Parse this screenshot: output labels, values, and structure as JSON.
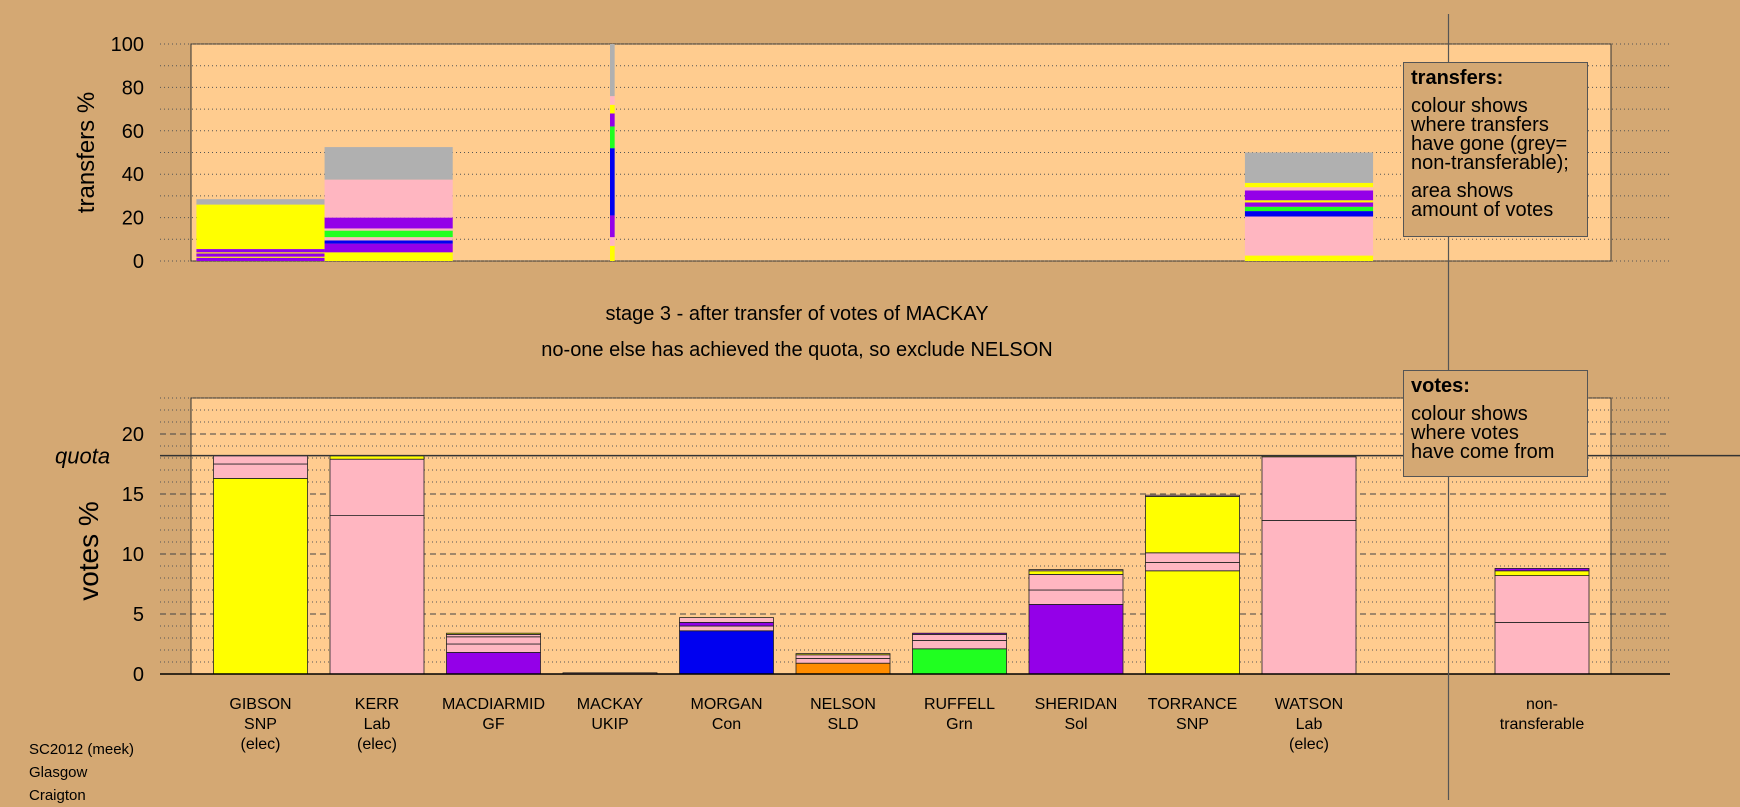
{
  "chart_data": [
    {
      "type": "bar",
      "panel": "transfers",
      "ylabel": "transfers %",
      "ylim": [
        0,
        100
      ],
      "yticks": [
        0,
        20,
        40,
        60,
        80,
        100
      ],
      "bars": [
        {
          "x0": 0.45,
          "x1": 1.55,
          "segments": [
            {
              "color": "#9400E8",
              "value": 1.5
            },
            {
              "color": "#FFFF00",
              "value": 0.5
            },
            {
              "color": "#9400E8",
              "value": 1.5
            },
            {
              "color": "#FFFF00",
              "value": 0.5
            },
            {
              "color": "#9400E8",
              "value": 1.5
            },
            {
              "color": "#FFFF00",
              "value": 20.5
            },
            {
              "color": "#B0B0B0",
              "value": 2.5
            }
          ]
        },
        {
          "x0": 1.55,
          "x1": 2.65,
          "segments": [
            {
              "color": "#FFFF00",
              "value": 4
            },
            {
              "color": "#9400E8",
              "value": 4
            },
            {
              "color": "#0000F0",
              "value": 1.5
            },
            {
              "color": "#FFB6C1",
              "value": 1.5
            },
            {
              "color": "#20FF20",
              "value": 3
            },
            {
              "color": "#FFB6C1",
              "value": 1
            },
            {
              "color": "#9400E8",
              "value": 5
            },
            {
              "color": "#FFB6C1",
              "value": 17.5
            },
            {
              "color": "#B0B0B0",
              "value": 15
            }
          ]
        },
        {
          "x0": 4.0,
          "x1": 4.04,
          "segments": [
            {
              "color": "#FFFF00",
              "value": 7
            },
            {
              "color": "#FFB6C1",
              "value": 4
            },
            {
              "color": "#9400E8",
              "value": 10
            },
            {
              "color": "#0000F0",
              "value": 31
            },
            {
              "color": "#20FF20",
              "value": 10
            },
            {
              "color": "#9400E8",
              "value": 6
            },
            {
              "color": "#FFFF00",
              "value": 4
            },
            {
              "color": "#FFB6C1",
              "value": 4
            },
            {
              "color": "#B0B0B0",
              "value": 24
            }
          ]
        },
        {
          "x0": 9.45,
          "x1": 10.55,
          "segments": [
            {
              "color": "#FFFF00",
              "value": 2.5
            },
            {
              "color": "#FFB6C1",
              "value": 18
            },
            {
              "color": "#0000F0",
              "value": 2.5
            },
            {
              "color": "#20FF20",
              "value": 2
            },
            {
              "color": "#9400E8",
              "value": 2
            },
            {
              "color": "#FFFF00",
              "value": 1
            },
            {
              "color": "#9400E8",
              "value": 4.5
            },
            {
              "color": "#FFB6C1",
              "value": 1.5
            },
            {
              "color": "#FFFF00",
              "value": 2
            },
            {
              "color": "#B0B0B0",
              "value": 14
            }
          ]
        }
      ]
    },
    {
      "type": "bar",
      "panel": "votes",
      "ylabel": "votes %",
      "ylim": [
        0,
        23
      ],
      "yticks": [
        0,
        5,
        10,
        15,
        20
      ],
      "quota": 18.2,
      "quota_label": "quota",
      "bars": [
        {
          "x": 1,
          "segments": [
            {
              "color": "#FFFF00",
              "value": 16.3
            },
            {
              "color": "#FFB6C1",
              "value": 1.2
            },
            {
              "color": "#FFB6C1",
              "value": 0.7
            }
          ]
        },
        {
          "x": 2,
          "segments": [
            {
              "color": "#FFB6C1",
              "value": 13.2
            },
            {
              "color": "#FFB6C1",
              "value": 4.7
            },
            {
              "color": "#FFFF00",
              "value": 0.3
            }
          ]
        },
        {
          "x": 3,
          "segments": [
            {
              "color": "#9400E8",
              "value": 1.8
            },
            {
              "color": "#FFB6C1",
              "value": 0.7
            },
            {
              "color": "#FFB6C1",
              "value": 0.6
            },
            {
              "color": "#FFB6C1",
              "value": 0.2
            },
            {
              "color": "#FFFF00",
              "value": 0.1
            }
          ]
        },
        {
          "x": 4,
          "segments": [
            {
              "color": "#FFB6C1",
              "value": 0.1
            }
          ]
        },
        {
          "x": 5,
          "segments": [
            {
              "color": "#0000F0",
              "value": 3.6
            },
            {
              "color": "#FFB6C1",
              "value": 0.4
            },
            {
              "color": "#9400E8",
              "value": 0.3
            },
            {
              "color": "#FFB6C1",
              "value": 0.4
            }
          ]
        },
        {
          "x": 6,
          "segments": [
            {
              "color": "#FF8C00",
              "value": 0.9
            },
            {
              "color": "#FFB6C1",
              "value": 0.4
            },
            {
              "color": "#FFB6C1",
              "value": 0.3
            },
            {
              "color": "#FFFF00",
              "value": 0.1
            }
          ]
        },
        {
          "x": 7,
          "segments": [
            {
              "color": "#20FF20",
              "value": 2.1
            },
            {
              "color": "#FFB6C1",
              "value": 0.7
            },
            {
              "color": "#FFB6C1",
              "value": 0.5
            },
            {
              "color": "#9400E8",
              "value": 0.1
            }
          ]
        },
        {
          "x": 8,
          "segments": [
            {
              "color": "#9400E8",
              "value": 5.8
            },
            {
              "color": "#FFB6C1",
              "value": 1.2
            },
            {
              "color": "#FFB6C1",
              "value": 1.3
            },
            {
              "color": "#FFFF00",
              "value": 0.3
            },
            {
              "color": "#FFB6C1",
              "value": 0.1
            }
          ]
        },
        {
          "x": 9,
          "segments": [
            {
              "color": "#FFFF00",
              "value": 8.6
            },
            {
              "color": "#FFB6C1",
              "value": 0.7
            },
            {
              "color": "#FFB6C1",
              "value": 0.8
            },
            {
              "color": "#FFFF00",
              "value": 4.7
            },
            {
              "color": "#FFB6C1",
              "value": 0.1
            }
          ]
        },
        {
          "x": 10,
          "segments": [
            {
              "color": "#FFB6C1",
              "value": 12.8
            },
            {
              "color": "#FFB6C1",
              "value": 5.3
            },
            {
              "color": "#FFFF00",
              "value": 0.1
            }
          ]
        },
        {
          "x": 12,
          "segments": [
            {
              "color": "#FFB6C1",
              "value": 4.3
            },
            {
              "color": "#FFB6C1",
              "value": 3.9
            },
            {
              "color": "#FFFF00",
              "value": 0.4
            },
            {
              "color": "#9400E8",
              "value": 0.2
            }
          ]
        }
      ],
      "categories": [
        {
          "x": 1,
          "lines": [
            "GIBSON",
            "SNP",
            "(elec)"
          ]
        },
        {
          "x": 2,
          "lines": [
            "KERR",
            "Lab",
            "(elec)"
          ]
        },
        {
          "x": 3,
          "lines": [
            "MACDIARMID",
            "GF"
          ]
        },
        {
          "x": 4,
          "lines": [
            "MACKAY",
            "UKIP"
          ]
        },
        {
          "x": 5,
          "lines": [
            "MORGAN",
            "Con"
          ]
        },
        {
          "x": 6,
          "lines": [
            "NELSON",
            "SLD"
          ]
        },
        {
          "x": 7,
          "lines": [
            "RUFFELL",
            "Grn"
          ]
        },
        {
          "x": 8,
          "lines": [
            "SHERIDAN",
            "Sol"
          ]
        },
        {
          "x": 9,
          "lines": [
            "TORRANCE",
            "SNP"
          ]
        },
        {
          "x": 10,
          "lines": [
            "WATSON",
            "Lab",
            "(elec)"
          ]
        },
        {
          "x": 12,
          "lines": [
            "non-",
            "transferable"
          ]
        }
      ]
    }
  ],
  "stage_title": "stage 3 - after transfer of votes of MACKAY",
  "stage_subtitle": "no-one else has achieved the quota, so exclude NELSON",
  "legend_transfers": {
    "title": "transfers:",
    "para1": [
      "colour shows",
      "where transfers",
      "have gone (grey=",
      "non-transferable);"
    ],
    "para2": [
      "area shows",
      "amount of votes"
    ]
  },
  "legend_votes": {
    "title": "votes:",
    "para1": [
      "colour shows",
      "where votes",
      "have come from"
    ]
  },
  "footer": [
    "SC2012 (meek)",
    "Glasgow",
    "Craigton"
  ],
  "colors": {
    "background": "#D4A873",
    "plot_area": "#FFCC8F",
    "snp": "#FFFF00",
    "lab": "#FFB6C1",
    "gf": "#9400E8",
    "con": "#0000F0",
    "sld": "#FF8C00",
    "grn": "#20FF20",
    "non_transferable": "#B0B0B0"
  }
}
